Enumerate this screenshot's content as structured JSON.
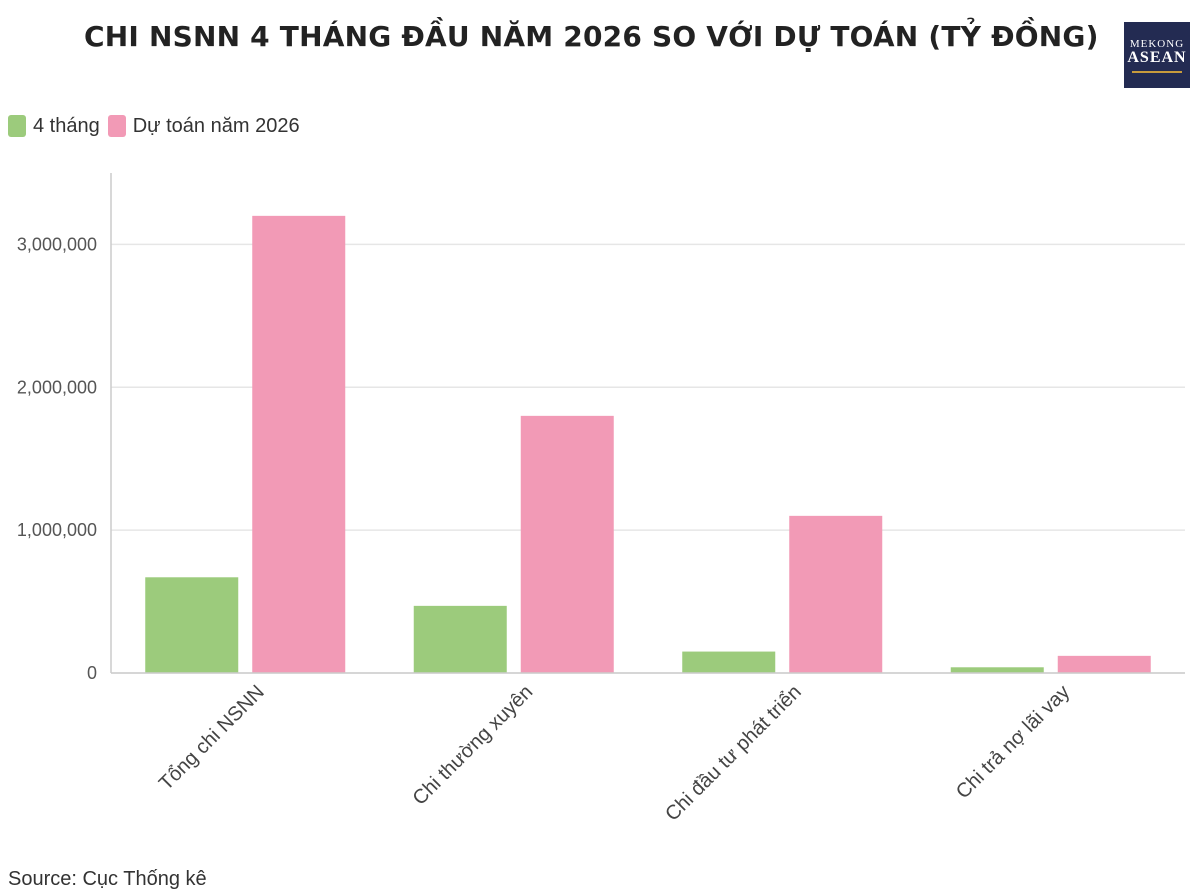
{
  "title": "CHI NSNN 4 THÁNG ĐẦU NĂM 2026 SO VỚI DỰ TOÁN (TỶ ĐỒNG)",
  "logo": {
    "line1": "MEKONG",
    "line2": "ASEAN"
  },
  "source": "Source: Cục Thống kê",
  "colors": {
    "four_months": "#9ccb7c",
    "budget": "#f29ab6",
    "grid": "#e6e6e6",
    "axis": "#cccccc"
  },
  "chart_data": {
    "type": "bar",
    "categories": [
      "Tổng chi NSNN",
      "Chi thường xuyên",
      "Chi đầu tư phát triển",
      "Chi trả nợ lãi vay"
    ],
    "series": [
      {
        "name": "4 tháng",
        "values": [
          670000,
          470000,
          150000,
          40000
        ]
      },
      {
        "name": "Dự toán năm 2026",
        "values": [
          3200000,
          1800000,
          1100000,
          120000
        ]
      }
    ],
    "ylim": [
      0,
      3500000
    ],
    "yticks": [
      0,
      1000000,
      2000000,
      3000000
    ],
    "ytick_labels": [
      "0",
      "1,000,000",
      "2,000,000",
      "3,000,000"
    ],
    "legend_position": "top-left",
    "grid": true
  }
}
